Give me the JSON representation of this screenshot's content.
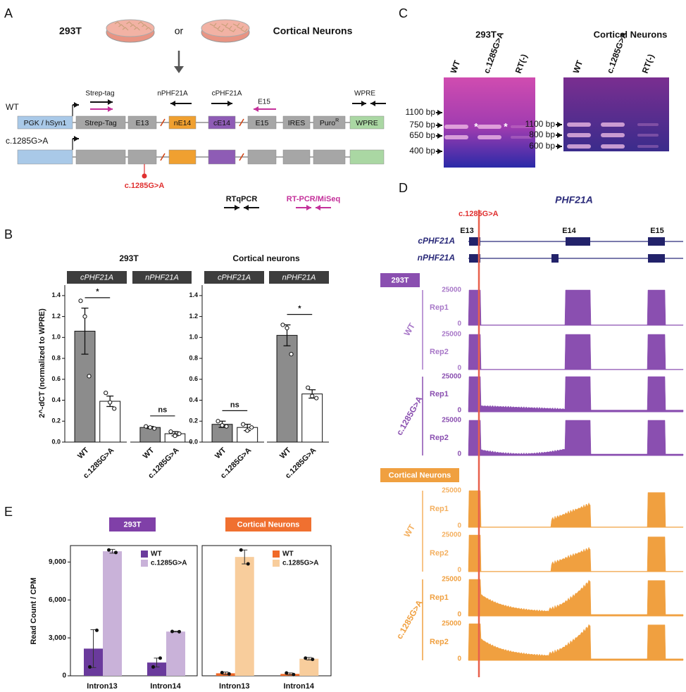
{
  "panel_a": {
    "label": "A",
    "cell_293t": "293T",
    "or": "or",
    "cell_neurons": "Cortical Neurons",
    "primers": [
      "Strep-tag",
      "nPHF21A",
      "cPHF21A",
      "E15",
      "WPRE"
    ],
    "rows": [
      "WT",
      "c.1285G>A"
    ],
    "elements": [
      "PGK / hSyn1",
      "Strep-Tag",
      "E13",
      "nE14",
      "cE14",
      "E15",
      "IRES",
      "Puro",
      "WPRE"
    ],
    "puro_sup": "R",
    "mutation": "c.1285G>A",
    "legend": [
      "RTqPCR",
      "RT-PCR/MiSeq"
    ]
  },
  "panel_b": {
    "label": "B",
    "groups": [
      "293T",
      "Cortical neurons"
    ],
    "y_label": "2^-dCT (normalized to WPRE)"
  },
  "panel_c": {
    "label": "C",
    "gels": [
      {
        "title": "293T",
        "lanes": [
          "WT",
          "c.1285G>A",
          "RT(-)"
        ],
        "sizes": [
          "1100 bp",
          "750 bp",
          "650 bp",
          "400 bp"
        ],
        "stars": [
          "*",
          "*"
        ]
      },
      {
        "title": "Cortical Neurons",
        "lanes": [
          "WT",
          "c.1285G>A",
          "RT(-)"
        ],
        "sizes": [
          "1100 bp",
          "800 bp",
          "600 bp"
        ]
      }
    ]
  },
  "panel_d": {
    "label": "D",
    "gene": "PHF21A",
    "mutation": "c.1285G>A",
    "exons": [
      "E13",
      "E14",
      "E15"
    ],
    "transcripts": [
      "cPHF21A",
      "nPHF21A"
    ],
    "track_ticks": [
      0,
      25000
    ],
    "cells": [
      {
        "name": "293T",
        "groups": [
          {
            "name": "WT",
            "reps": [
              "Rep1",
              "Rep2"
            ]
          },
          {
            "name": "c.1285G>A",
            "reps": [
              "Rep1",
              "Rep2"
            ]
          }
        ]
      },
      {
        "name": "Cortical Neurons",
        "groups": [
          {
            "name": "WT",
            "reps": [
              "Rep1",
              "Rep2"
            ]
          },
          {
            "name": "c.1285G>A",
            "reps": [
              "Rep1",
              "Rep2"
            ]
          }
        ]
      }
    ]
  },
  "panel_e": {
    "label": "E",
    "groups": [
      "293T",
      "Cortical Neurons"
    ],
    "y_label": "Read Count / CPM"
  },
  "chart_data": [
    {
      "type": "bar",
      "title": "cPHF21A",
      "categories": [
        "WT",
        "c.1285G>A"
      ],
      "values": [
        1.06,
        0.39
      ],
      "errors": [
        0.22,
        0.05
      ],
      "points": [
        [
          1.35,
          1.2,
          0.63
        ],
        [
          0.47,
          0.38,
          0.32
        ]
      ],
      "colors": [
        "#8c8c8c",
        "#ffffff"
      ],
      "significance": "*",
      "ylim": [
        0,
        1.5
      ],
      "yticks": [
        {
          "value": 0,
          "label": "0.0"
        },
        0.2,
        0.4,
        0.6,
        0.8,
        {
          "value": 1,
          "label": "1.0"
        },
        1.2,
        1.4
      ]
    },
    {
      "type": "bar",
      "title": "nPHF21A",
      "categories": [
        "WT",
        "c.1285G>A"
      ],
      "values": [
        0.14,
        0.08
      ],
      "errors": [
        0.01,
        0.02
      ],
      "points": [
        [
          0.15,
          0.14,
          0.13
        ],
        [
          0.1,
          0.06,
          0.08
        ]
      ],
      "colors": [
        "#8c8c8c",
        "#ffffff"
      ],
      "significance": "ns",
      "ylim": [
        0,
        1.5
      ]
    },
    {
      "type": "bar",
      "title": "cPHF21A",
      "categories": [
        "WT",
        "c.1285G>A"
      ],
      "values": [
        0.17,
        0.14
      ],
      "errors": [
        0.03,
        0.03
      ],
      "points": [
        [
          0.2,
          0.16,
          0.15
        ],
        [
          0.17,
          0.11,
          0.14
        ]
      ],
      "colors": [
        "#8c8c8c",
        "#ffffff"
      ],
      "significance": "ns",
      "ylim": [
        0,
        1.5
      ],
      "yticks": [
        {
          "value": 0,
          "label": "0.0"
        },
        0.2,
        0.4,
        0.6,
        0.8,
        {
          "value": 1,
          "label": "1.0"
        },
        1.2,
        1.4
      ]
    },
    {
      "type": "bar",
      "title": "nPHF21A",
      "categories": [
        "WT",
        "c.1285G>A"
      ],
      "values": [
        1.02,
        0.46
      ],
      "errors": [
        0.1,
        0.04
      ],
      "points": [
        [
          1.12,
          1.09,
          0.84
        ],
        [
          0.52,
          0.44,
          0.42
        ]
      ],
      "colors": [
        "#8c8c8c",
        "#ffffff"
      ],
      "significance": "*",
      "ylim": [
        0,
        1.5
      ]
    },
    {
      "type": "grouped_bar",
      "categories": [
        "Intron13",
        "Intron14"
      ],
      "series": [
        {
          "name": "WT",
          "color": "#6a3a9c",
          "values": [
            2150,
            1050
          ],
          "errors": [
            1500,
            350
          ],
          "points": [
            [
              700,
              3600
            ],
            [
              700,
              1400
            ]
          ]
        },
        {
          "name": "c.1285G>A",
          "color": "#c9b2d9",
          "values": [
            9850,
            3500
          ],
          "errors": [
            150,
            30
          ],
          "points": [
            [
              9950,
              9750
            ],
            [
              3510,
              3490
            ]
          ]
        }
      ],
      "ylim": [
        0,
        10300
      ],
      "yticks": [
        0,
        {
          "value": 3000,
          "label": "3,000"
        },
        {
          "value": 6000,
          "label": "6,000"
        },
        {
          "value": 9000,
          "label": "9,000"
        }
      ]
    },
    {
      "type": "grouped_bar",
      "categories": [
        "Intron13",
        "Intron14"
      ],
      "series": [
        {
          "name": "WT",
          "color": "#f06a28",
          "values": [
            200,
            150
          ],
          "errors": [
            100,
            80
          ],
          "points": [
            [
              250,
              150
            ],
            [
              220,
              100
            ]
          ]
        },
        {
          "name": "c.1285G>A",
          "color": "#f8cd9c",
          "values": [
            9400,
            1350
          ],
          "errors": [
            550,
            100
          ],
          "points": [
            [
              9950,
              8850
            ],
            [
              1400,
              1300
            ]
          ]
        }
      ],
      "ylim": [
        0,
        10300
      ]
    }
  ]
}
